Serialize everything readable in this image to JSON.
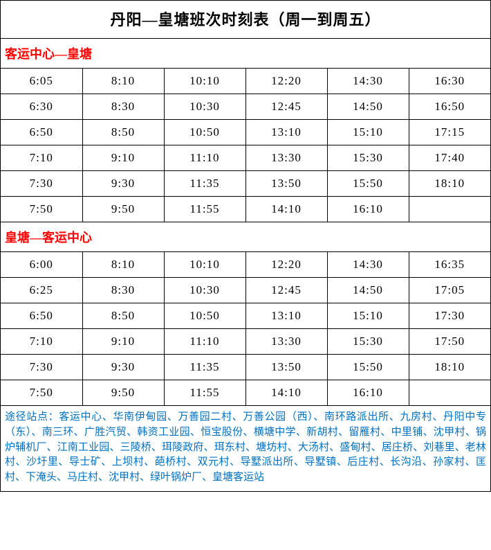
{
  "title": "丹阳—皇塘班次时刻表（周一到周五）",
  "colors": {
    "section_header": "#ff0000",
    "footer_text": "#0070c0",
    "border": "#000000",
    "background": "#ffffff",
    "text": "#000000"
  },
  "typography": {
    "title_fontsize": 22,
    "section_fontsize": 18,
    "cell_fontsize": 17,
    "footer_fontsize": 15,
    "font_family": "SimSun"
  },
  "sections": [
    {
      "name": "客运中心—皇塘",
      "columns": 6,
      "rows": [
        [
          "6:05",
          "8:10",
          "10:10",
          "12:20",
          "14:30",
          "16:30"
        ],
        [
          "6:30",
          "8:30",
          "10:30",
          "12:45",
          "14:50",
          "16:50"
        ],
        [
          "6:50",
          "8:50",
          "10:50",
          "13:10",
          "15:10",
          "17:15"
        ],
        [
          "7:10",
          "9:10",
          "11:10",
          "13:30",
          "15:30",
          "17:40"
        ],
        [
          "7:30",
          "9:30",
          "11:35",
          "13:50",
          "15:50",
          "18:10"
        ],
        [
          "7:50",
          "9:50",
          "11:55",
          "14:10",
          "16:10",
          ""
        ]
      ]
    },
    {
      "name": "皇塘—客运中心",
      "columns": 6,
      "rows": [
        [
          "6:00",
          "8:10",
          "10:10",
          "12:20",
          "14:30",
          "16:35"
        ],
        [
          "6:25",
          "8:30",
          "10:30",
          "12:45",
          "14:50",
          "17:05"
        ],
        [
          "6:50",
          "8:50",
          "10:50",
          "13:10",
          "15:10",
          "17:30"
        ],
        [
          "7:10",
          "9:10",
          "11:10",
          "13:30",
          "15:30",
          "17:50"
        ],
        [
          "7:30",
          "9:30",
          "11:35",
          "13:50",
          "15:50",
          "18:10"
        ],
        [
          "7:50",
          "9:50",
          "11:55",
          "14:10",
          "16:10",
          ""
        ]
      ]
    }
  ],
  "footer": "途径站点：客运中心、华南伊甸园、万善园二村、万善公园（西）、南环路派出所、九房村、丹阳中专（东）、南三环、广胜汽贸、韩资工业园、恒宝股份、横塘中学、新胡村、留雁村、中里铺、沈甲村、锅炉辅机厂、江南工业园、三陵桥、珥陵政府、珥东村、塘坊村、大汤村、盛甸村、居庄桥、刘巷里、老林村、沙圩里、导士矿、上坝村、葩桥村、双元村、导墅派出所、导墅镇、后庄村、长沟沿、孙家村、匡村、下淹头、马庄村、沈甲村、绿叶锅炉厂、皇塘客运站"
}
